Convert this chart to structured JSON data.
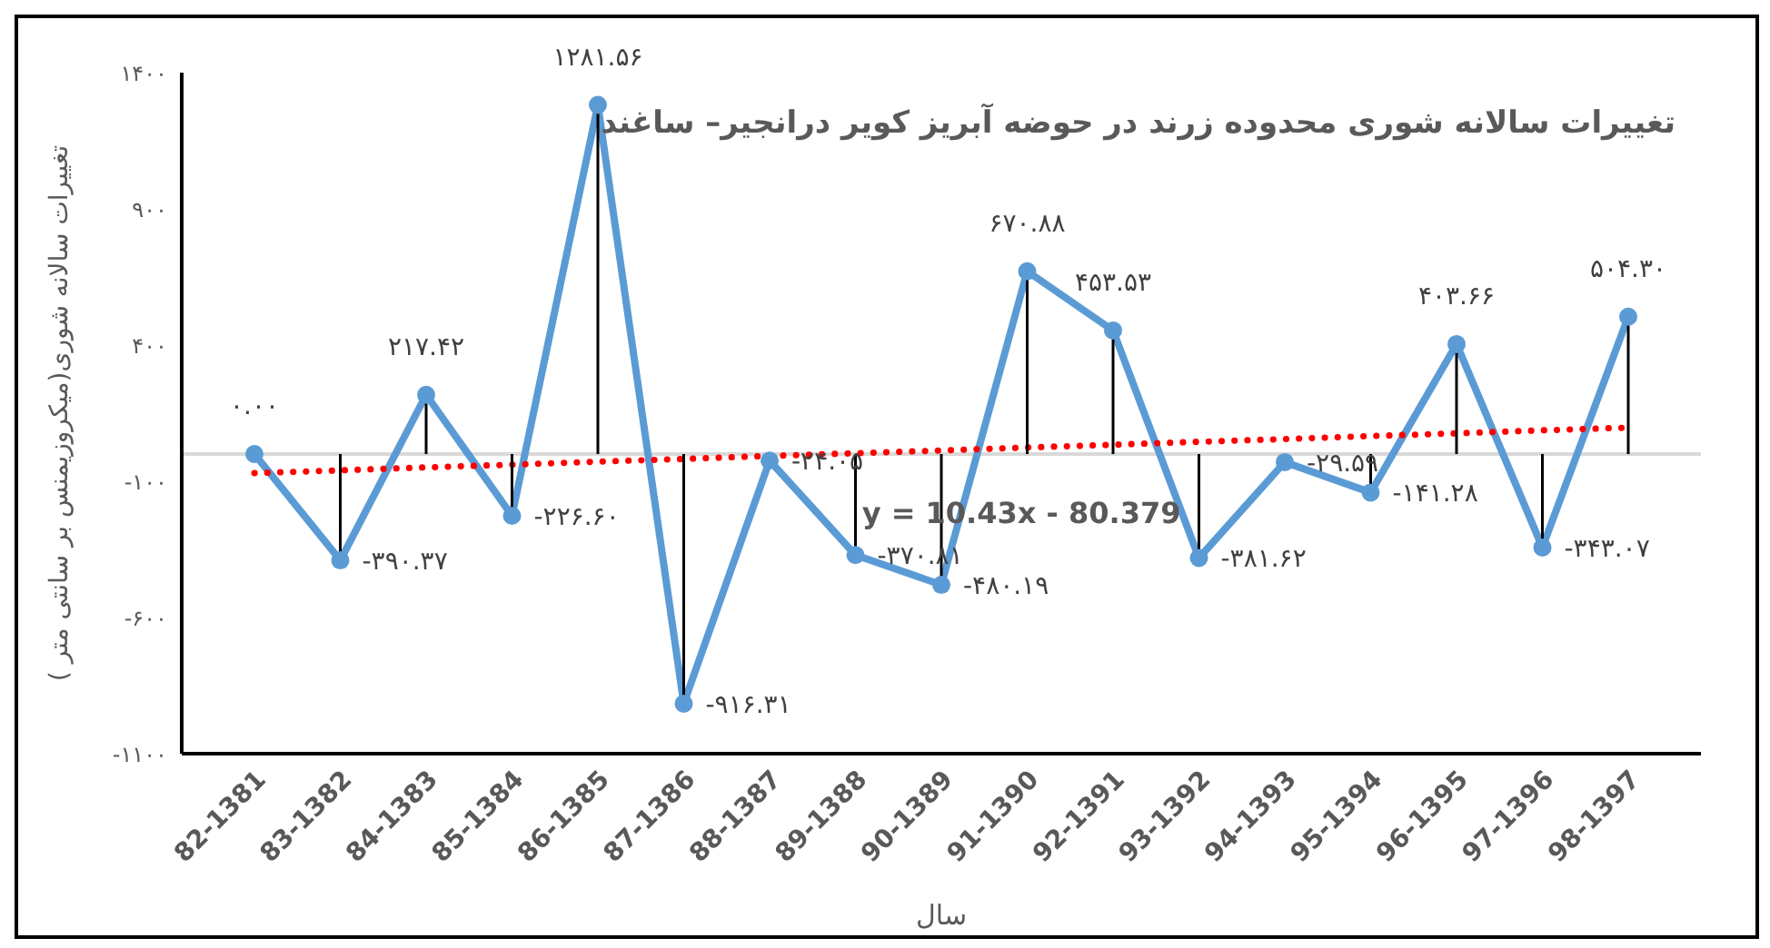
{
  "chart_data": {
    "type": "line",
    "title": "تغییرات سالانه شوری محدوده زرند در حوضه آبریز کویر درانجیر– ساغند",
    "xlabel": "سال",
    "ylabel": "تغییرات سالانه شوری(میکروزیمنس بر سانتی متر )",
    "categories": [
      "82-1381",
      "83-1382",
      "84-1383",
      "85-1384",
      "86-1385",
      "87-1386",
      "88-1387",
      "89-1388",
      "90-1389",
      "91-1390",
      "92-1391",
      "93-1392",
      "94-1393",
      "95-1394",
      "96-1395",
      "97-1396",
      "98-1397"
    ],
    "series": [
      {
        "color": "#5b9bd5",
        "marker": "circle",
        "line_style": "solid",
        "values": [
          0.0,
          -390.37,
          217.42,
          -226.6,
          1281.56,
          -916.31,
          -24.05,
          -370.81,
          -480.19,
          670.88,
          453.53,
          -381.62,
          -29.59,
          -141.28,
          403.66,
          -343.07,
          504.3
        ],
        "value_labels": [
          "۰.۰۰",
          "-۳۹۰.۳۷",
          "۲۱۷.۴۲",
          "-۲۲۶.۶۰",
          "۱۲۸۱.۵۶",
          "-۹۱۶.۳۱",
          "-۲۴.۰۵",
          "-۳۷۰.۸۱",
          "-۴۸۰.۱۹",
          "۶۷۰.۸۸",
          "۴۵۳.۵۳",
          "-۳۸۱.۶۲",
          "-۲۹.۵۹",
          "-۱۴۱.۲۸",
          "۴۰۳.۶۶",
          "-۳۴۳.۰۷",
          "۵۰۴.۳۰"
        ]
      },
      {
        "type": "line",
        "color": "#ff0000",
        "marker": "none",
        "line_style": "dotted",
        "values": [
          -70,
          -60,
          -49,
          -39,
          -28,
          -18,
          -7,
          3,
          13,
          24,
          34,
          45,
          55,
          66,
          76,
          87,
          97
        ]
      }
    ],
    "ylim": [
      -1100,
      1400
    ],
    "yticks": [
      {
        "value": -1100,
        "label": "-۱۱۰۰"
      },
      {
        "value": -600,
        "label": "-۶۰۰"
      },
      {
        "value": -100,
        "label": "-۱۰۰"
      },
      {
        "value": 400,
        "label": "۴۰۰"
      },
      {
        "value": 900,
        "label": "۹۰۰"
      },
      {
        "value": 1400,
        "label": "۱۴۰۰"
      }
    ],
    "ref_lines": [
      {
        "axis": "y",
        "value": 0,
        "color": "#d9d9d9"
      }
    ],
    "annotations": [
      {
        "text": "y = 10.43x - 80.379",
        "x": "93-1392",
        "y": 45
      }
    ],
    "tick_labels": true
  }
}
